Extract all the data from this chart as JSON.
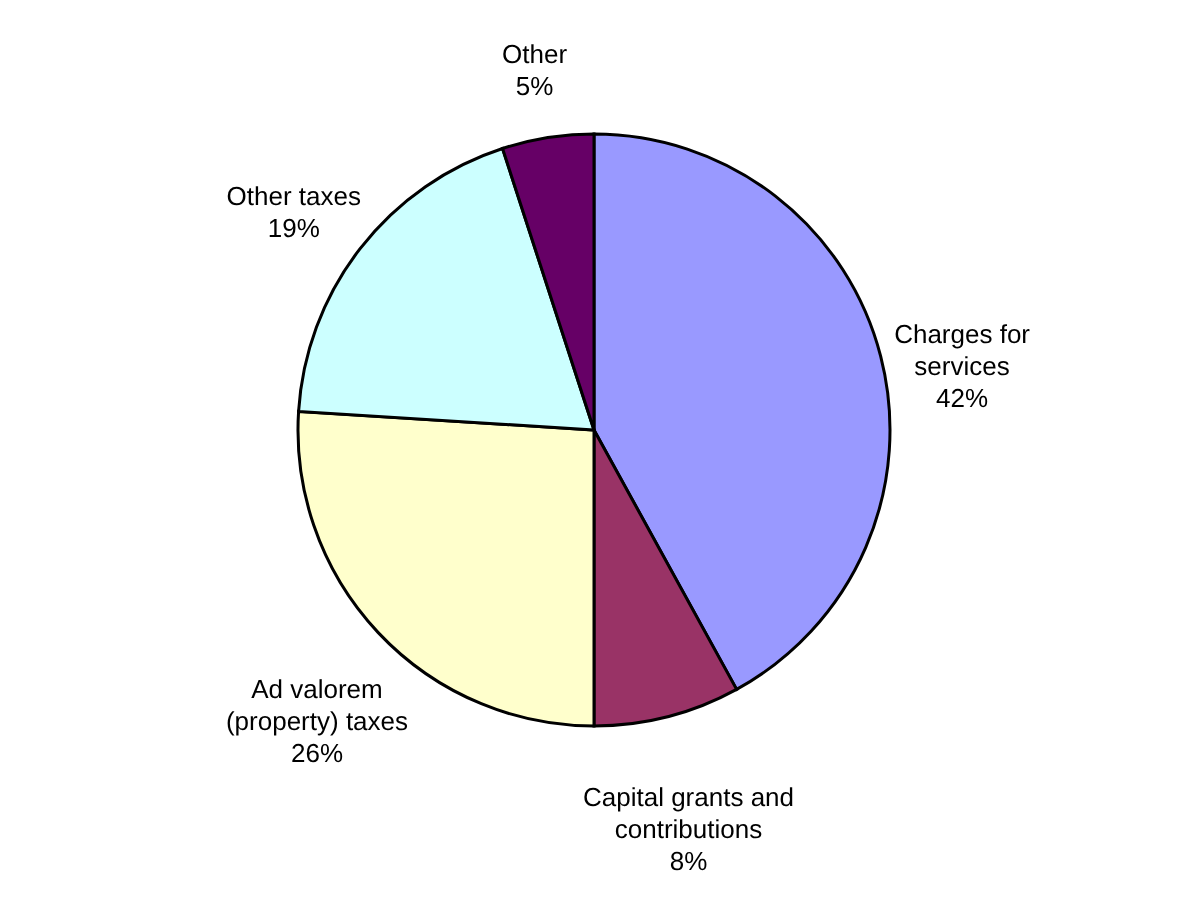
{
  "chart_data": {
    "type": "pie",
    "categories": [
      "Charges for services",
      "Capital grants and contributions",
      "Ad valorem (property) taxes",
      "Other taxes",
      "Other"
    ],
    "values": [
      42,
      8,
      26,
      19,
      5
    ],
    "colors": [
      "#9999ff",
      "#993366",
      "#ffffcc",
      "#ccffff",
      "#660066"
    ],
    "value_labels": [
      "42%",
      "8%",
      "26%",
      "19%",
      "5%"
    ]
  }
}
